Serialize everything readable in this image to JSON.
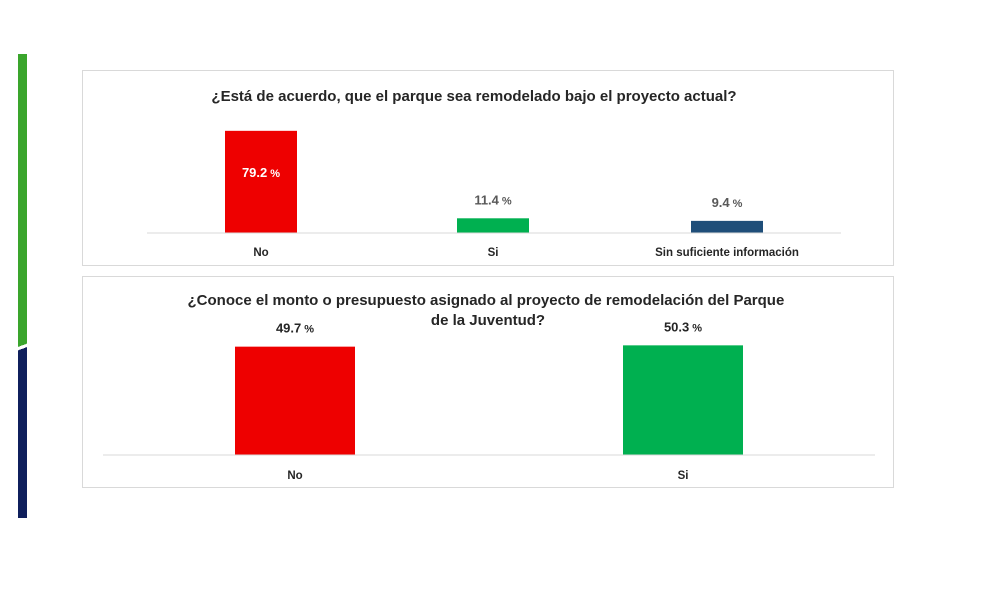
{
  "chart_data": [
    {
      "type": "bar",
      "title": "¿Está de acuerdo, que el parque sea remodelado bajo el proyecto actual?",
      "categories": [
        "No",
        "Si",
        "Sin suficiente información"
      ],
      "values": [
        79.2,
        11.4,
        9.4
      ],
      "value_labels": [
        "79.2",
        "11.4",
        "9.4"
      ],
      "unit": "%",
      "colors": [
        "#ee0000",
        "#00b050",
        "#1f4e79"
      ],
      "label_colors": [
        "#ffffff",
        "#595959",
        "#595959"
      ],
      "label_inside": [
        true,
        false,
        false
      ],
      "ylim": [
        0,
        100
      ],
      "grid": false
    },
    {
      "type": "bar",
      "title": "¿Conoce el monto o presupuesto asignado al proyecto de remodelación del Parque de la Juventud?",
      "title_lines": [
        "¿Conoce el monto o presupuesto asignado al proyecto de remodelación del Parque",
        "de la Juventud?"
      ],
      "categories": [
        "No",
        "Si"
      ],
      "values": [
        49.7,
        50.3
      ],
      "value_labels": [
        "49.7",
        "50.3"
      ],
      "unit": "%",
      "colors": [
        "#ee0000",
        "#00b050"
      ],
      "label_colors": [
        "#262626",
        "#262626"
      ],
      "label_inside": [
        false,
        false
      ],
      "ylim": [
        0,
        100
      ],
      "grid": false
    }
  ]
}
